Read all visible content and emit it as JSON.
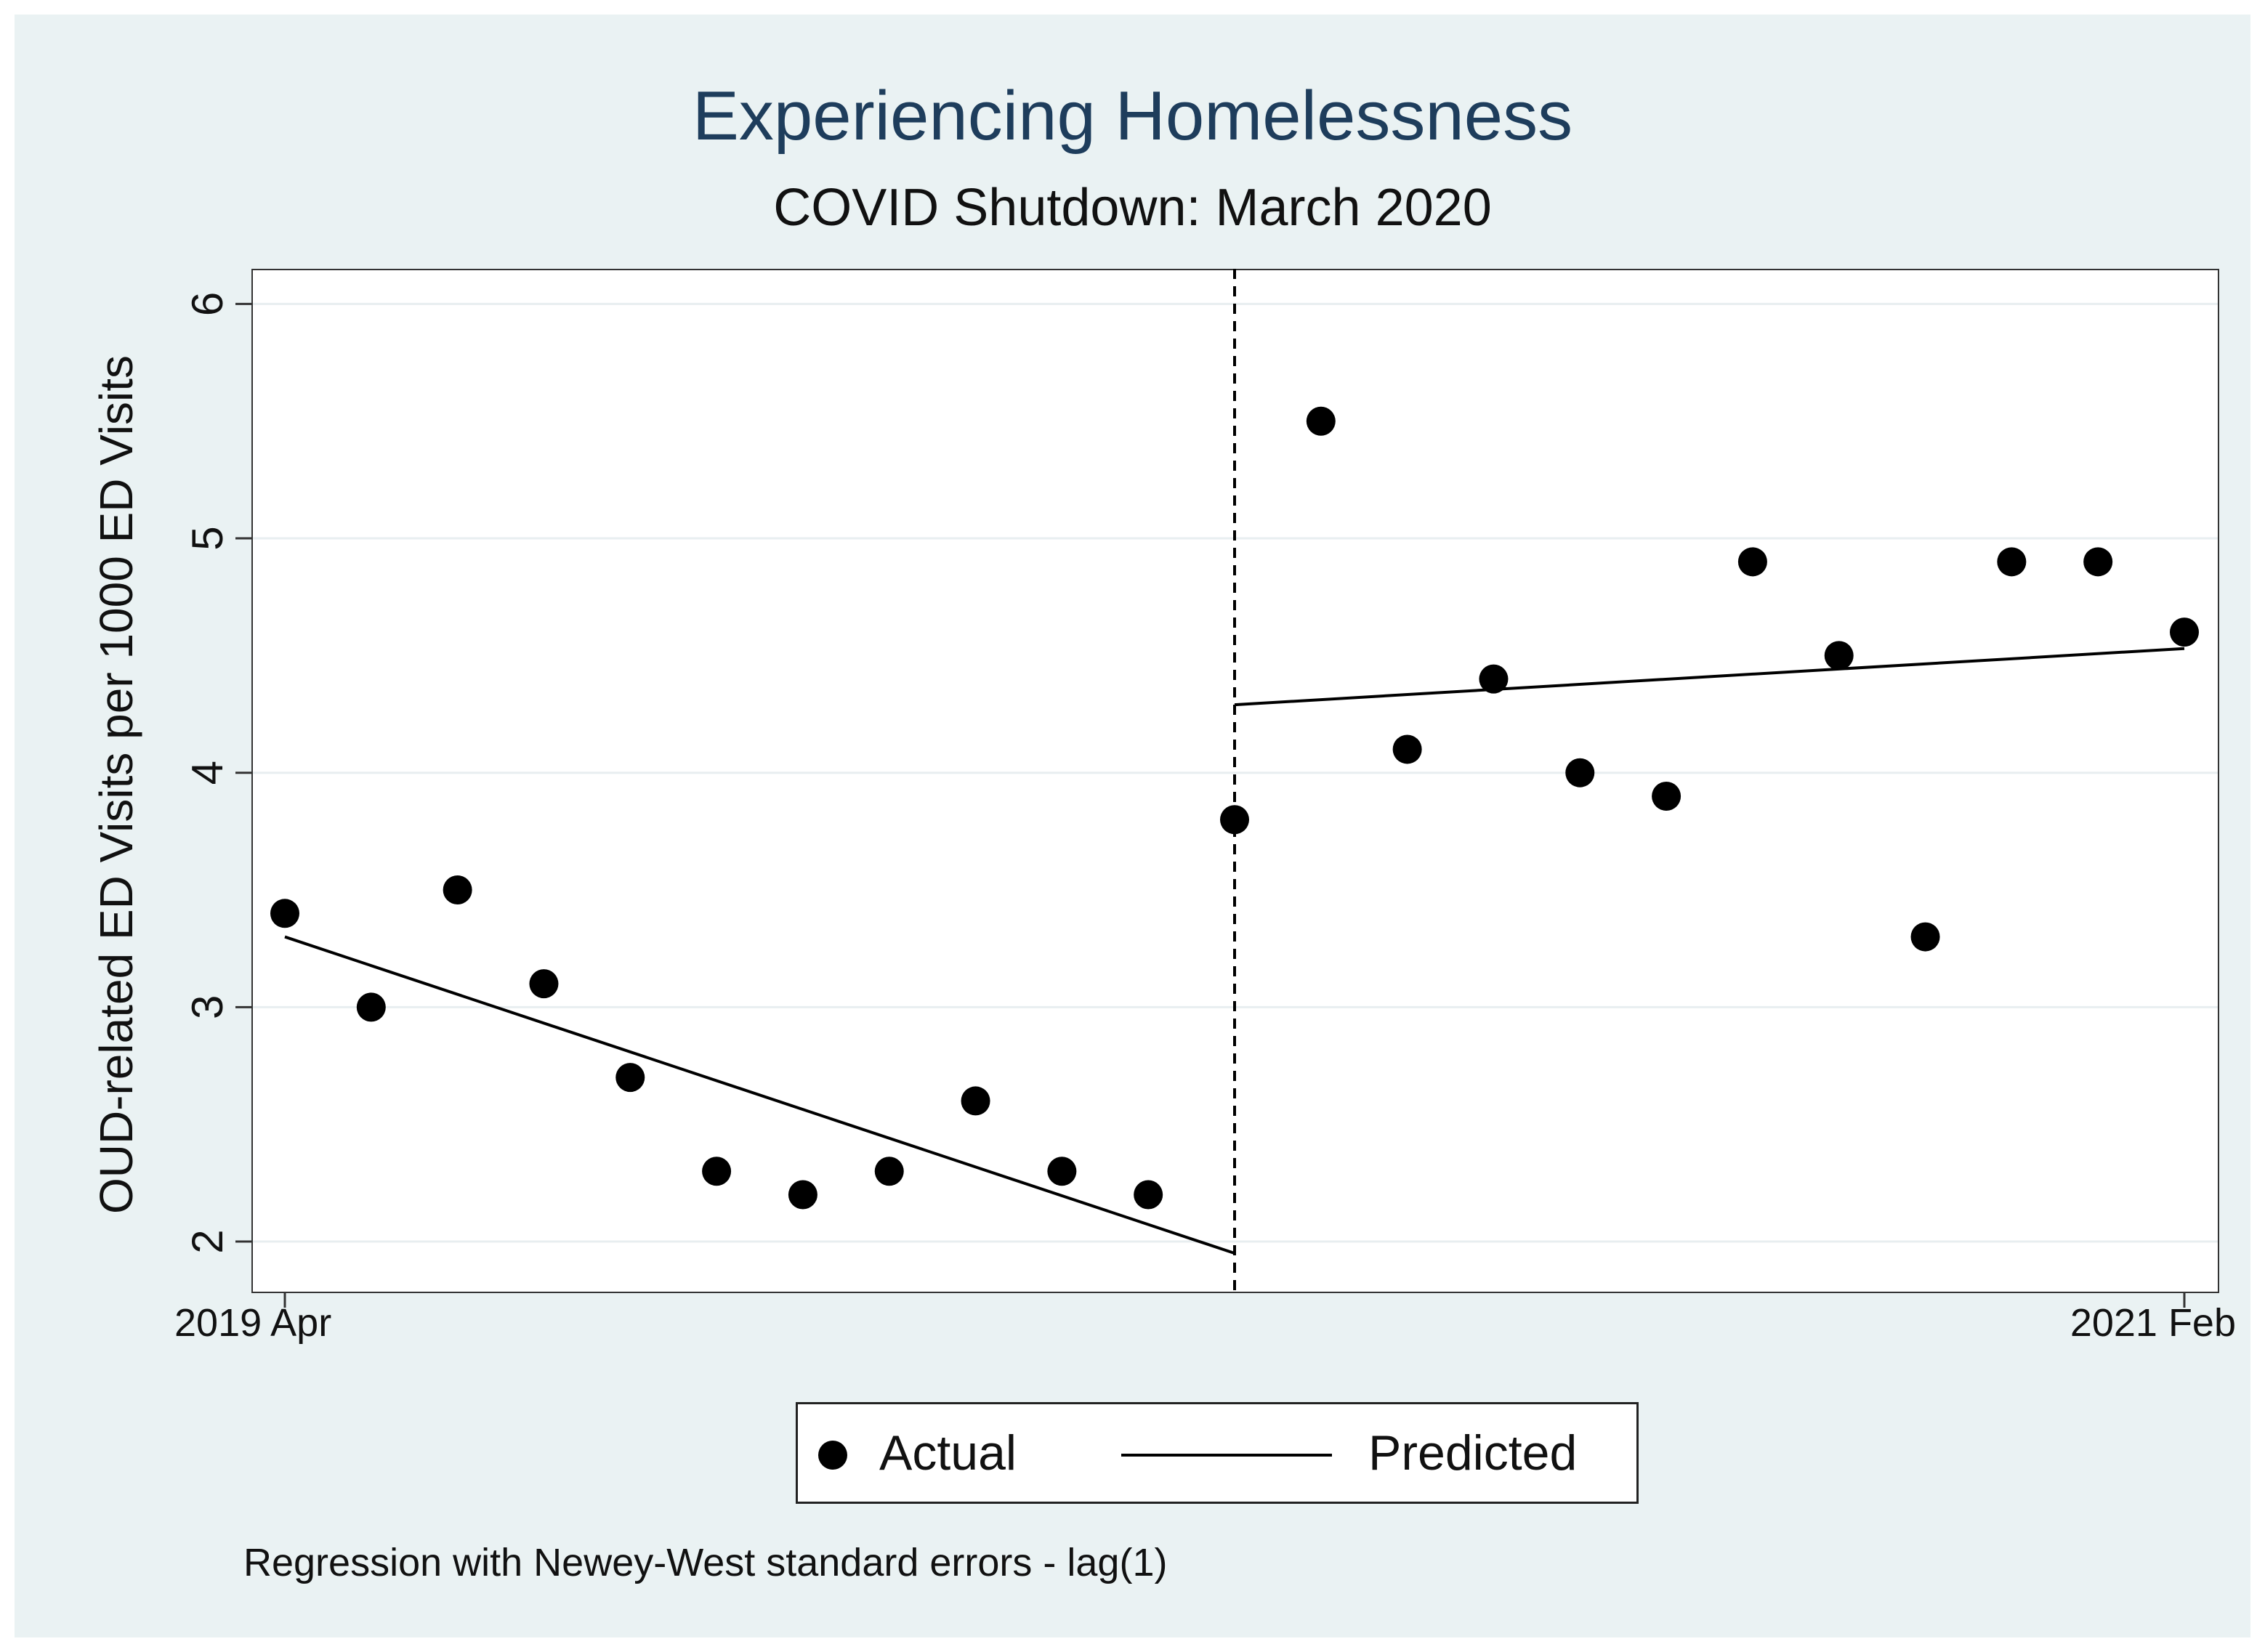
{
  "chart_data": {
    "type": "scatter",
    "title": "Experiencing Homelessness",
    "subtitle": "COVID Shutdown: March 2020",
    "xlabel": "",
    "ylabel": "OUD-related ED Visits per 1000 ED Visits",
    "x_tick_labels": {
      "first": "2019 Apr",
      "last": "2021 Feb"
    },
    "x_range_months": [
      0,
      22
    ],
    "ylim": [
      1.78,
      6.15
    ],
    "y_ticks": [
      2,
      3,
      4,
      5,
      6
    ],
    "grid": true,
    "intervention_month": 11,
    "intervention_label": "March 2020",
    "series": [
      {
        "name": "Actual",
        "style": "marker",
        "x": [
          0,
          1,
          2,
          3,
          4,
          5,
          6,
          7,
          8,
          9,
          10,
          11,
          12,
          13,
          14,
          15,
          16,
          17,
          18,
          19,
          20,
          21,
          22
        ],
        "y": [
          3.4,
          3.0,
          3.5,
          3.1,
          2.7,
          2.3,
          2.2,
          2.3,
          2.6,
          2.3,
          2.2,
          3.8,
          5.5,
          4.1,
          4.4,
          4.0,
          3.9,
          4.9,
          4.5,
          3.3,
          4.9,
          4.9,
          4.6
        ]
      },
      {
        "name": "Predicted",
        "style": "line",
        "segments": [
          {
            "x": [
              0,
              11
            ],
            "y": [
              3.3,
              1.95
            ]
          },
          {
            "x": [
              11,
              22
            ],
            "y": [
              4.29,
              4.53
            ]
          }
        ]
      }
    ],
    "legend": [
      "Actual",
      "Predicted"
    ],
    "legend_position": "bottom-center",
    "footnote": "Regression with Newey-West standard errors - lag(1)"
  },
  "colors": {
    "background": "#eaf2f3",
    "plot_background": "#ffffff",
    "title": "#1e3d5c",
    "marker": "#000000",
    "line": "#000000",
    "grid": "#e8eef0"
  }
}
